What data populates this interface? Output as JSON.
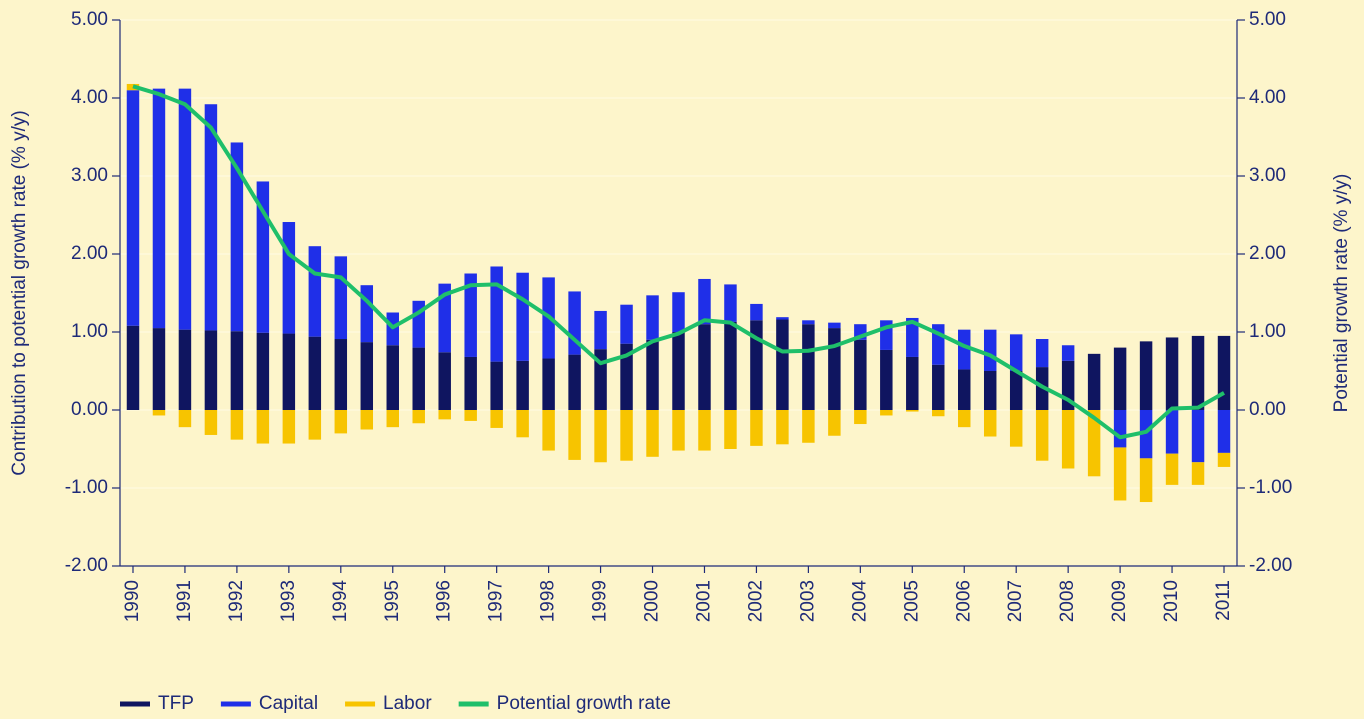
{
  "chart_data": {
    "type": "bar",
    "y_label": "Contribution to potential growth rate (% y/y)",
    "y2_label": "Potential growth rate (% y/y)",
    "categories": [
      "1990",
      null,
      "1991",
      null,
      "1992",
      null,
      "1993",
      null,
      "1994",
      null,
      "1995",
      null,
      "1996",
      null,
      "1997",
      null,
      "1998",
      null,
      "1999",
      null,
      "2000",
      null,
      "2001",
      null,
      "2002",
      null,
      "2003",
      null,
      "2004",
      null,
      "2005",
      null,
      "2006",
      null,
      "2007",
      null,
      "2008",
      null,
      "2009",
      null,
      "2010",
      null,
      "2011"
    ],
    "stacked": true,
    "series": [
      {
        "name": "TFP",
        "color": "#0f1560",
        "values": [
          1.08,
          1.05,
          1.03,
          1.02,
          1.01,
          0.99,
          0.98,
          0.94,
          0.91,
          0.87,
          0.83,
          0.8,
          0.74,
          0.68,
          0.62,
          0.63,
          0.66,
          0.71,
          0.78,
          0.85,
          0.9,
          1.0,
          1.1,
          1.13,
          1.15,
          1.16,
          1.1,
          1.05,
          0.9,
          0.77,
          0.68,
          0.58,
          0.52,
          0.5,
          0.5,
          0.55,
          0.63,
          0.72,
          0.8,
          0.88,
          0.93,
          0.95,
          0.95
        ]
      },
      {
        "name": "Capital",
        "color": "#1f2fe8",
        "values": [
          3.02,
          3.07,
          3.09,
          2.9,
          2.42,
          1.94,
          1.43,
          1.16,
          1.06,
          0.73,
          0.42,
          0.6,
          0.88,
          1.07,
          1.22,
          1.13,
          1.04,
          0.81,
          0.49,
          0.5,
          0.57,
          0.51,
          0.58,
          0.48,
          0.21,
          0.03,
          0.05,
          0.07,
          0.2,
          0.38,
          0.5,
          0.52,
          0.51,
          0.53,
          0.47,
          0.36,
          0.2,
          0,
          -0.48,
          -0.62,
          -0.56,
          -0.67,
          -0.55
        ]
      },
      {
        "name": "Labor",
        "color": "#f7c400",
        "values": [
          0.08,
          -0.07,
          -0.22,
          -0.32,
          -0.38,
          -0.43,
          -0.43,
          -0.38,
          -0.3,
          -0.25,
          -0.22,
          -0.17,
          -0.12,
          -0.14,
          -0.23,
          -0.35,
          -0.52,
          -0.64,
          -0.67,
          -0.65,
          -0.6,
          -0.52,
          -0.52,
          -0.5,
          -0.46,
          -0.44,
          -0.42,
          -0.33,
          -0.18,
          -0.07,
          -0.02,
          -0.08,
          -0.22,
          -0.34,
          -0.47,
          -0.65,
          -0.75,
          -0.85,
          -0.68,
          -0.56,
          -0.4,
          -0.29,
          -0.18
        ]
      },
      {
        "name": "Potential growth rate",
        "color": "#1fbf6a",
        "type": "line",
        "axis": "y2",
        "values": [
          4.15,
          4.05,
          3.92,
          3.62,
          3.1,
          2.55,
          2.0,
          1.75,
          1.7,
          1.4,
          1.06,
          1.25,
          1.48,
          1.6,
          1.61,
          1.42,
          1.2,
          0.9,
          0.6,
          0.7,
          0.88,
          0.98,
          1.15,
          1.12,
          0.92,
          0.75,
          0.76,
          0.82,
          0.94,
          1.06,
          1.13,
          0.98,
          0.82,
          0.7,
          0.5,
          0.3,
          0.13,
          -0.1,
          -0.35,
          -0.28,
          0.02,
          0.03,
          0.22
        ]
      }
    ],
    "ylim": [
      -2,
      5
    ],
    "yticks": [
      {
        "value": -2,
        "label": "-2.00"
      },
      {
        "value": -1,
        "label": "-1.00"
      },
      {
        "value": 0,
        "label": "0.00"
      },
      {
        "value": 1,
        "label": "1.00"
      },
      {
        "value": 2,
        "label": "2.00"
      },
      {
        "value": 3,
        "label": "3.00"
      },
      {
        "value": 4,
        "label": "4.00"
      },
      {
        "value": 5,
        "label": "5.00"
      }
    ],
    "y2lim": [
      -2,
      5
    ],
    "y2ticks": [
      {
        "value": -2,
        "label": "-2.00"
      },
      {
        "value": -1,
        "label": "-1.00"
      },
      {
        "value": 0,
        "label": "0.00"
      },
      {
        "value": 1,
        "label": "1.00"
      },
      {
        "value": 2,
        "label": "2.00"
      },
      {
        "value": 3,
        "label": "3.00"
      },
      {
        "value": 4,
        "label": "4.00"
      },
      {
        "value": 5,
        "label": "5.00"
      }
    ],
    "grid": true,
    "legend": "bottom"
  }
}
